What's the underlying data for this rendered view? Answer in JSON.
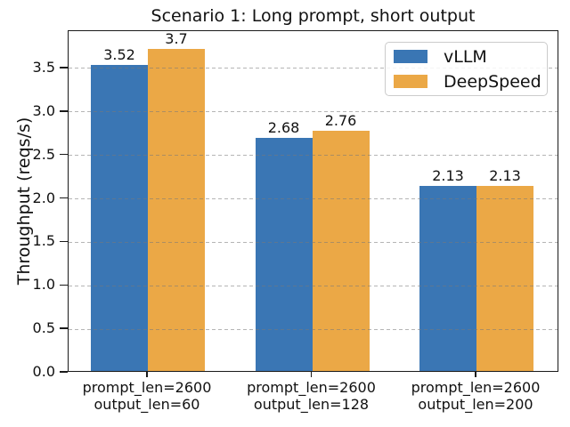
{
  "chart_data": {
    "type": "bar",
    "title": "Scenario 1: Long prompt, short output",
    "ylabel": "Throughput (reqs/s)",
    "xlabel": "",
    "categories": [
      "prompt_len=2600\noutput_len=60",
      "prompt_len=2600\noutput_len=128",
      "prompt_len=2600\noutput_len=200"
    ],
    "series": [
      {
        "name": "vLLM",
        "color": "#3a76b4",
        "values": [
          3.52,
          2.68,
          2.13
        ],
        "value_labels": [
          "3.52",
          "2.68",
          "2.13"
        ]
      },
      {
        "name": "DeepSpeed",
        "color": "#eba846",
        "values": [
          3.7,
          2.76,
          2.13
        ],
        "value_labels": [
          "3.7",
          "2.76",
          "2.13"
        ]
      }
    ],
    "yticks": [
      0.0,
      0.5,
      1.0,
      1.5,
      2.0,
      2.5,
      3.0,
      3.5
    ],
    "ytick_labels": [
      "0.0",
      "0.5",
      "1.0",
      "1.5",
      "2.0",
      "2.5",
      "3.0",
      "3.5"
    ],
    "ylim": [
      0,
      3.93
    ],
    "grid": "horizontal dashed",
    "grid_color": "#b9b9b9",
    "legend_position": "upper right"
  }
}
